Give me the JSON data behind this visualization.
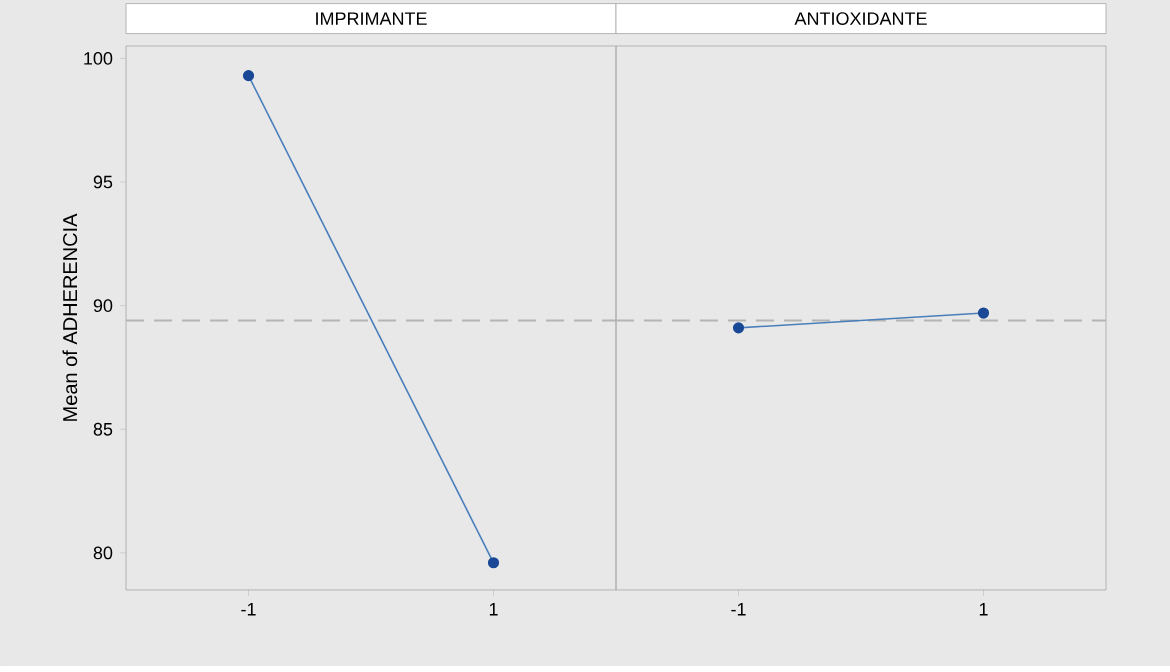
{
  "chart_data": [
    {
      "type": "line",
      "title": "IMPRIMANTE",
      "ylabel": "Mean of ADHERENCIA",
      "categories": [
        "-1",
        "1"
      ],
      "values": [
        99.3,
        79.6
      ],
      "color": "#4a7ebb",
      "marker": "circle",
      "line_style": "solid",
      "ylim": [
        78.5,
        100.5
      ],
      "yticks": [
        80,
        85,
        90,
        95,
        100
      ],
      "ref_lines": [
        {
          "axis": "y",
          "value": 89.4,
          "color": "#b4b4b4",
          "line_style": "dashed"
        }
      ]
    },
    {
      "type": "line",
      "title": "ANTIOXIDANTE",
      "categories": [
        "-1",
        "1"
      ],
      "values": [
        89.1,
        89.7
      ],
      "color": "#4a7ebb",
      "marker": "circle",
      "line_style": "solid",
      "ylim": [
        78.5,
        100.5
      ],
      "tick_labels": "x",
      "ref_lines": [
        {
          "axis": "y",
          "value": 89.4,
          "color": "#b4b4b4",
          "line_style": "dashed"
        }
      ]
    }
  ]
}
